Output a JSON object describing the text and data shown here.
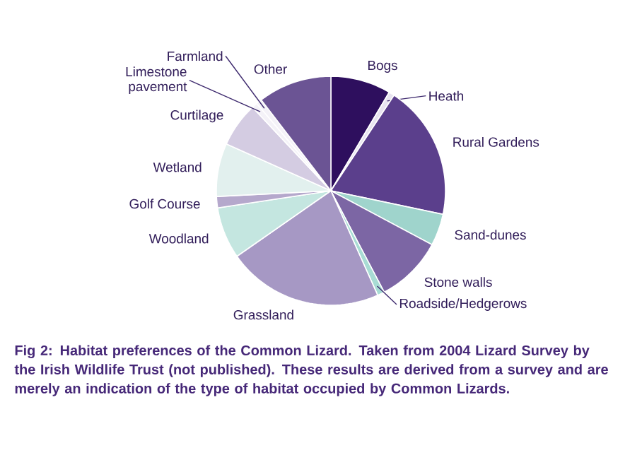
{
  "chart_data": {
    "type": "pie",
    "categories": [
      "Bogs",
      "Heath",
      "Rural Gardens",
      "Sand-dunes",
      "Stone walls",
      "Roadside/Hedgerows",
      "Grassland",
      "Woodland",
      "Golf Course",
      "Wetland",
      "Curtilage",
      "Limestone pavement",
      "Farmland",
      "Other"
    ],
    "values": [
      8.5,
      0.8,
      19,
      4.5,
      9.5,
      1,
      22,
      7.3,
      1.6,
      7.5,
      6.3,
      0.8,
      0.8,
      10.4
    ],
    "colors": [
      "#2e0f5e",
      "#e8e4f0",
      "#5b3f8c",
      "#9fd4cc",
      "#7c66a4",
      "#a8dcd4",
      "#a698c4",
      "#c4e6e0",
      "#b5a8cc",
      "#e2f0ee",
      "#d4cce2",
      "#f4f2f8",
      "#f4f2f8",
      "#6b5494"
    ],
    "annotations": [
      "Fig 2: Habitat preferences of the Common Lizard. Taken from 2004 Lizard Survey by the Irish Wildlife Trust (not published). These results are derived from a survey and are merely an indication of the type of habitat occupied by Common Lizards."
    ]
  }
}
